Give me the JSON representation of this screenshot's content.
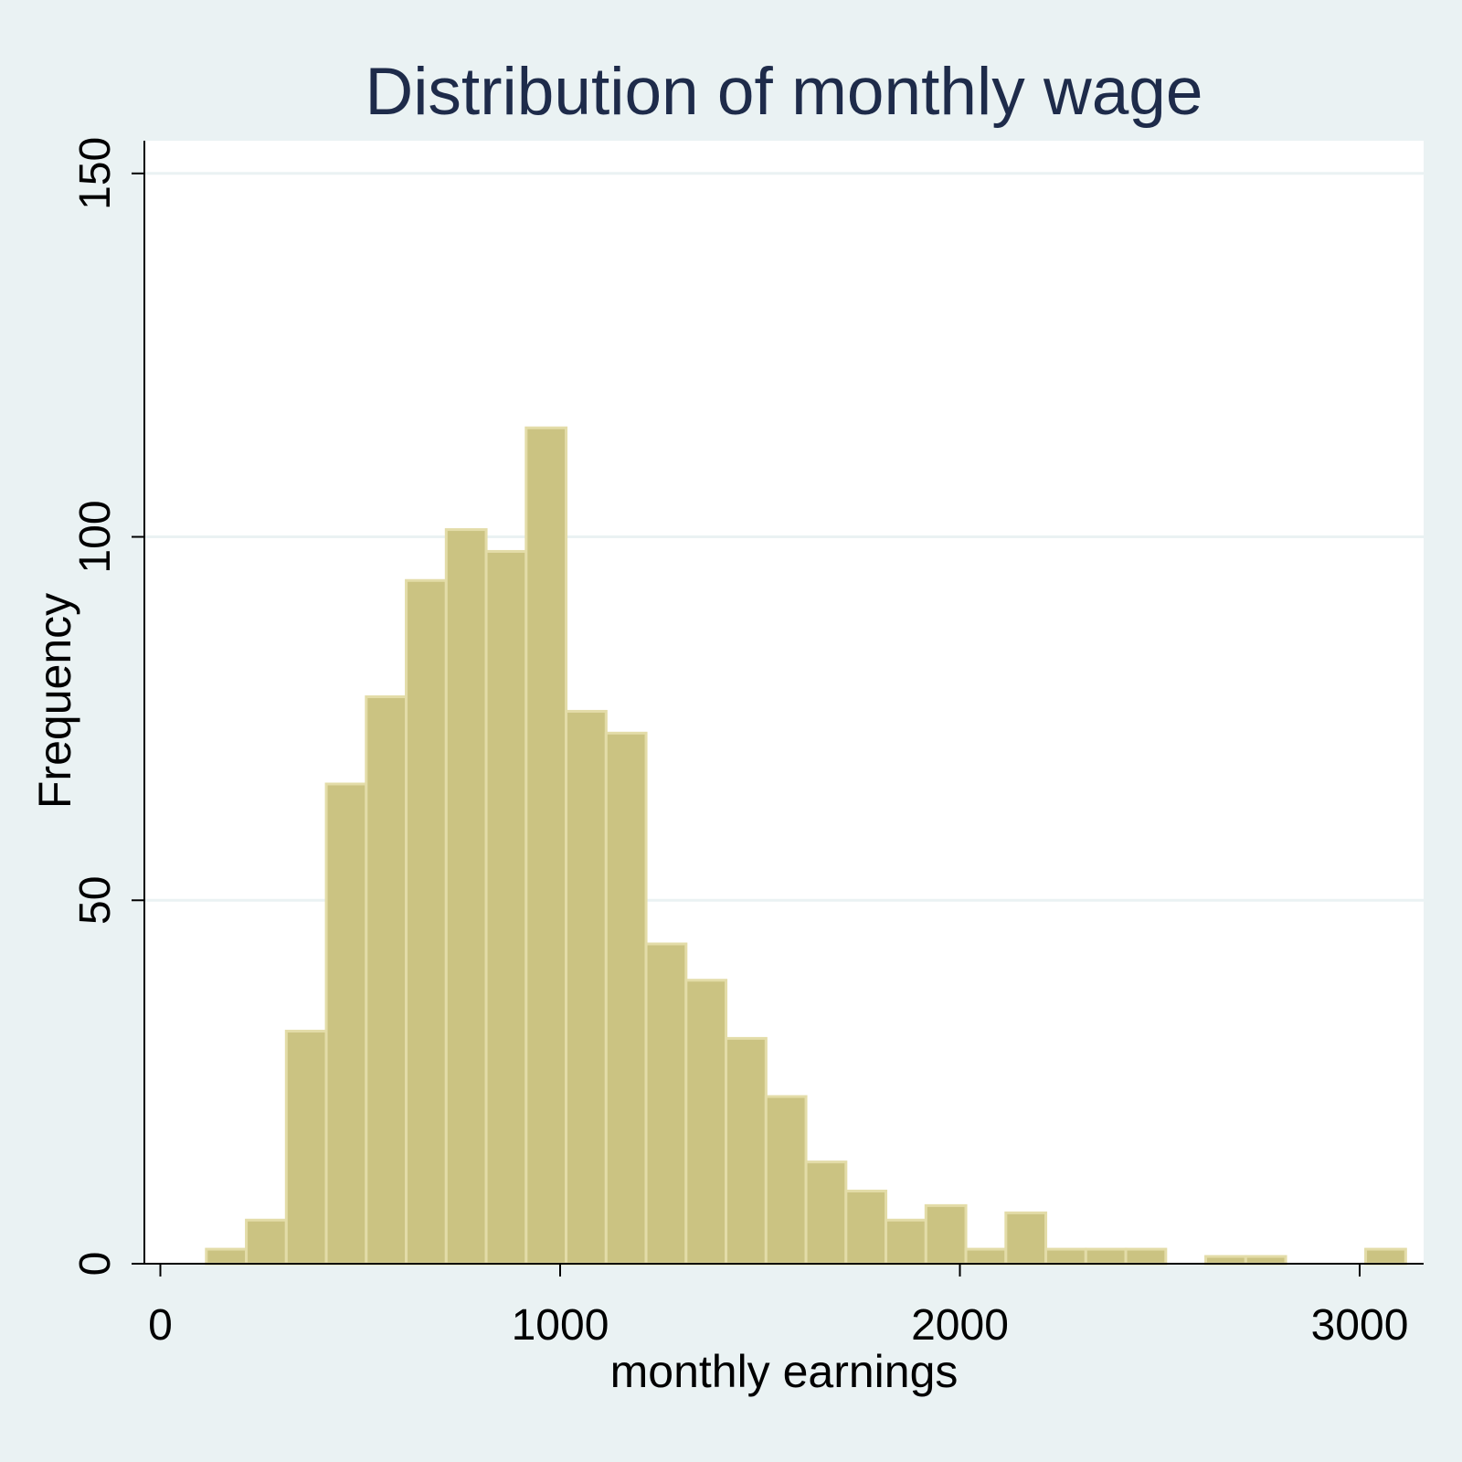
{
  "chart_data": {
    "type": "bar",
    "title": "Distribution of monthly wage",
    "xlabel": "monthly earnings",
    "ylabel": "Frequency",
    "xlim": [
      -40,
      3160
    ],
    "ylim": [
      0,
      154.5
    ],
    "xticks": [
      0,
      1000,
      2000,
      3000
    ],
    "yticks": [
      0,
      50,
      100,
      150
    ],
    "grid": true,
    "bin_width": 100,
    "bins": [
      {
        "x0": 115,
        "x1": 215,
        "value": 2
      },
      {
        "x0": 215,
        "x1": 315,
        "value": 6
      },
      {
        "x0": 315,
        "x1": 415,
        "value": 32
      },
      {
        "x0": 415,
        "x1": 515,
        "value": 66
      },
      {
        "x0": 515,
        "x1": 615,
        "value": 78
      },
      {
        "x0": 615,
        "x1": 715,
        "value": 94
      },
      {
        "x0": 715,
        "x1": 815,
        "value": 101
      },
      {
        "x0": 815,
        "x1": 915,
        "value": 98
      },
      {
        "x0": 915,
        "x1": 1015,
        "value": 115
      },
      {
        "x0": 1015,
        "x1": 1115,
        "value": 76
      },
      {
        "x0": 1115,
        "x1": 1215,
        "value": 73
      },
      {
        "x0": 1215,
        "x1": 1315,
        "value": 44
      },
      {
        "x0": 1315,
        "x1": 1415,
        "value": 39
      },
      {
        "x0": 1415,
        "x1": 1515,
        "value": 31
      },
      {
        "x0": 1515,
        "x1": 1615,
        "value": 23
      },
      {
        "x0": 1615,
        "x1": 1715,
        "value": 14
      },
      {
        "x0": 1715,
        "x1": 1815,
        "value": 10
      },
      {
        "x0": 1815,
        "x1": 1915,
        "value": 6
      },
      {
        "x0": 1915,
        "x1": 2015,
        "value": 8
      },
      {
        "x0": 2015,
        "x1": 2115,
        "value": 2
      },
      {
        "x0": 2115,
        "x1": 2215,
        "value": 7
      },
      {
        "x0": 2215,
        "x1": 2315,
        "value": 2
      },
      {
        "x0": 2315,
        "x1": 2415,
        "value": 2
      },
      {
        "x0": 2415,
        "x1": 2515,
        "value": 2
      },
      {
        "x0": 2515,
        "x1": 2615,
        "value": 0
      },
      {
        "x0": 2615,
        "x1": 2715,
        "value": 1
      },
      {
        "x0": 2715,
        "x1": 2815,
        "value": 1
      },
      {
        "x0": 2815,
        "x1": 2915,
        "value": 0
      },
      {
        "x0": 2915,
        "x1": 3015,
        "value": 0
      },
      {
        "x0": 3015,
        "x1": 3115,
        "value": 2
      }
    ]
  },
  "colors": {
    "background": "#eaf2f3",
    "plot_background": "#ffffff",
    "bar_fill": "#cbc382",
    "bar_edge": "#e3dca8",
    "gridline": "#eaf2f3",
    "axis": "#000000",
    "title": "#1e2b4a"
  }
}
